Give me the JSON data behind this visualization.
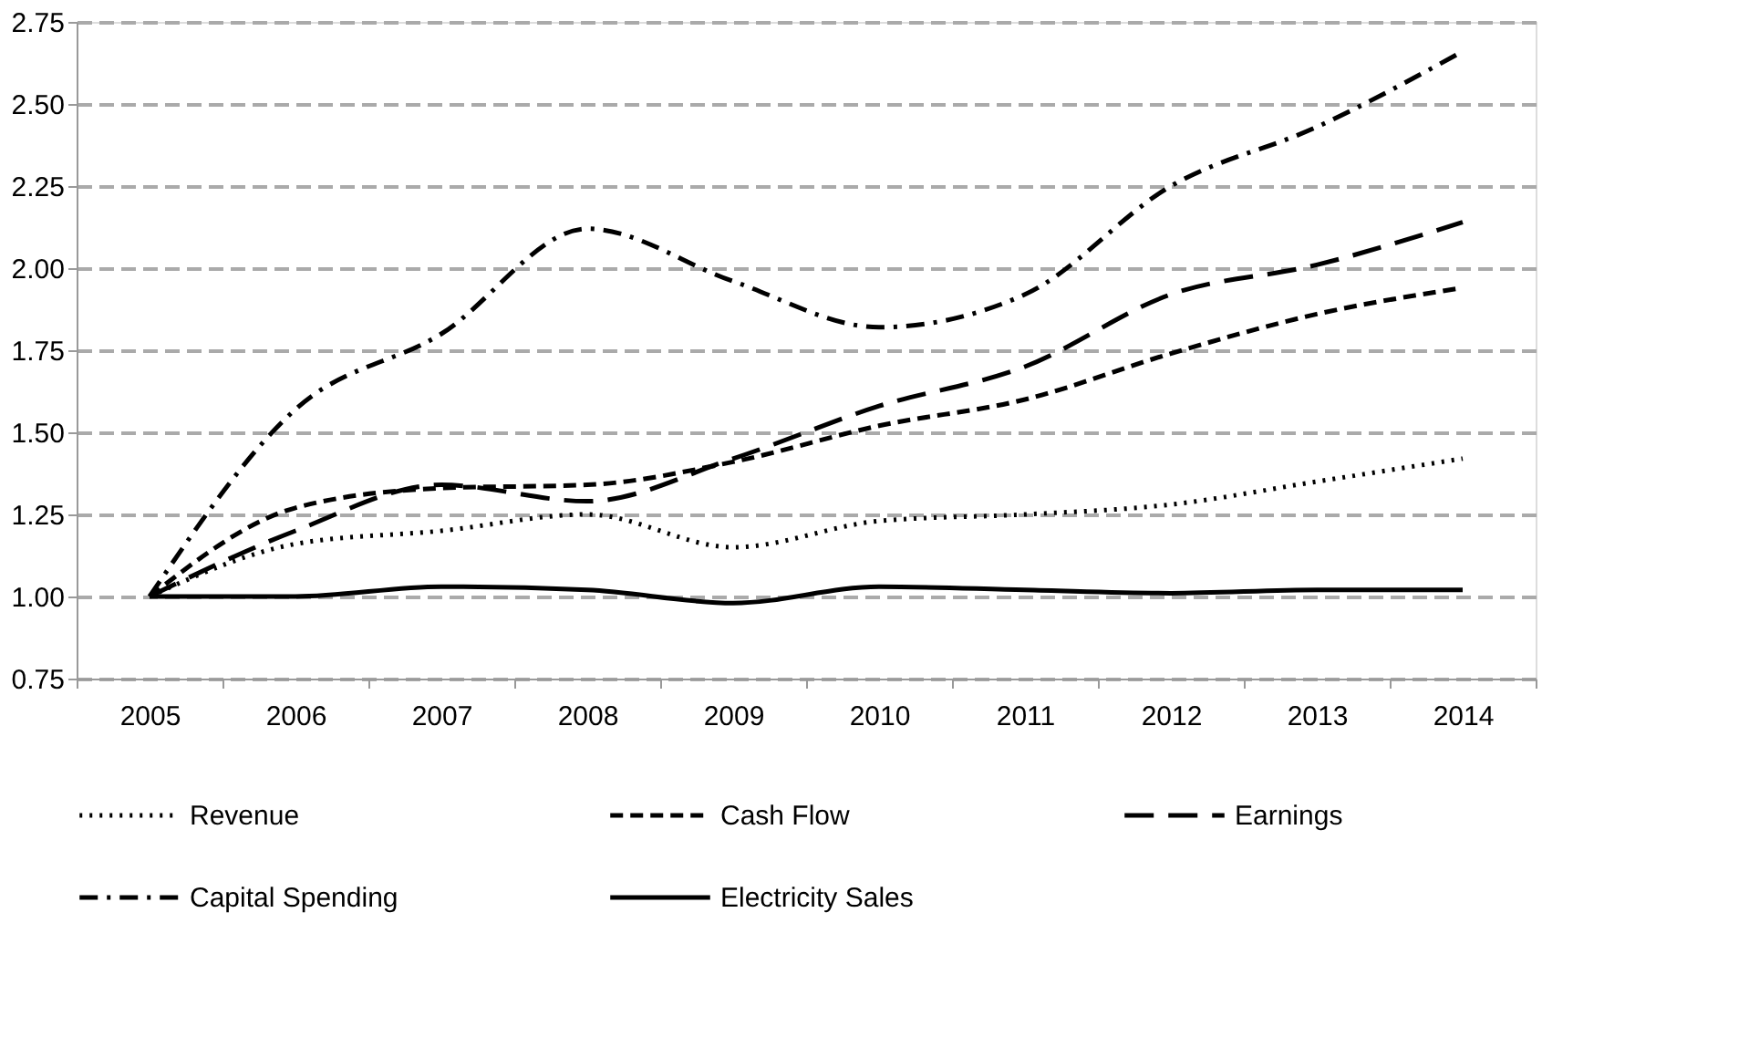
{
  "chart_data": {
    "type": "line",
    "categories": [
      "2005",
      "2006",
      "2007",
      "2008",
      "2009",
      "2010",
      "2011",
      "2012",
      "2013",
      "2014"
    ],
    "series": [
      {
        "name": "Revenue",
        "color": "#000000",
        "line_style": "dotted",
        "values": [
          1.0,
          1.16,
          1.2,
          1.25,
          1.15,
          1.23,
          1.25,
          1.28,
          1.35,
          1.42
        ]
      },
      {
        "name": "Cash Flow",
        "color": "#000000",
        "line_style": "dashed",
        "values": [
          1.0,
          1.27,
          1.33,
          1.34,
          1.41,
          1.52,
          1.6,
          1.74,
          1.86,
          1.94
        ]
      },
      {
        "name": "Earnings",
        "color": "#000000",
        "line_style": "longdash",
        "values": [
          1.0,
          1.2,
          1.34,
          1.29,
          1.42,
          1.58,
          1.7,
          1.92,
          2.01,
          2.14
        ]
      },
      {
        "name": "Capital Spending",
        "color": "#000000",
        "line_style": "dashdot",
        "values": [
          1.0,
          1.57,
          1.8,
          2.12,
          1.96,
          1.82,
          1.92,
          2.25,
          2.43,
          2.66
        ]
      },
      {
        "name": "Electricity Sales",
        "color": "#000000",
        "line_style": "solid",
        "values": [
          1.0,
          1.0,
          1.03,
          1.02,
          0.98,
          1.03,
          1.02,
          1.01,
          1.02,
          1.02
        ]
      }
    ],
    "ylim": [
      0.75,
      2.75
    ],
    "yticks": [
      {
        "value": 0.75,
        "label": "0.75"
      },
      {
        "value": 1,
        "label": "1.00"
      },
      {
        "value": 1.25,
        "label": "1.25"
      },
      {
        "value": 1.5,
        "label": "1.50"
      },
      {
        "value": 1.75,
        "label": "1.75"
      },
      {
        "value": 2,
        "label": "2.00"
      },
      {
        "value": 2.25,
        "label": "2.25"
      },
      {
        "value": 2.5,
        "label": "2.50"
      },
      {
        "value": 2.75,
        "label": "2.75"
      }
    ],
    "grid": "y",
    "legend": "bottom",
    "marker": "none"
  }
}
